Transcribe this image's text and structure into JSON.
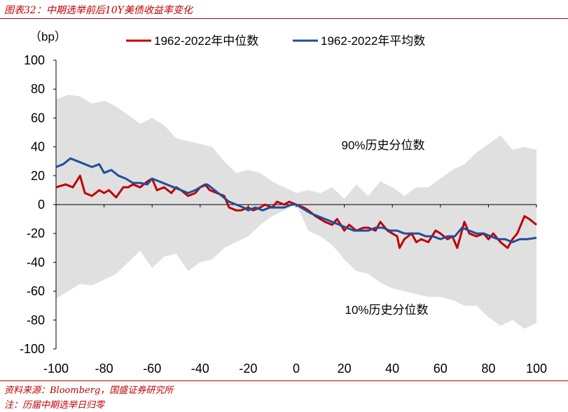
{
  "figure_title": "图表32：中期选举前后10Y美债收益率变化",
  "source_note": "资料来源：Bloomberg，国盛证券研究所",
  "footnote": "注：历届中期选举日归零",
  "chart_data": {
    "type": "line",
    "title": "",
    "ylabel": "（bp）",
    "xlabel": "",
    "xlim": [
      -100,
      100
    ],
    "ylim": [
      -100,
      100
    ],
    "xticks": [
      "-100",
      "-80",
      "-60",
      "-40",
      "-20",
      "0",
      "20",
      "40",
      "60",
      "80",
      "100"
    ],
    "yticks": [
      "100",
      "80",
      "60",
      "40",
      "20",
      "0",
      "-20",
      "-40",
      "-60",
      "-80",
      "-100"
    ],
    "legend_position": "top",
    "grid": false,
    "band_labels": {
      "upper": "90%历史分位数",
      "lower": "10%历史分位数"
    },
    "band": {
      "color": "#e0e0e0",
      "x": [
        -100,
        -95,
        -90,
        -85,
        -80,
        -75,
        -70,
        -65,
        -60,
        -55,
        -50,
        -45,
        -40,
        -35,
        -30,
        -25,
        -20,
        -15,
        -10,
        -5,
        0,
        5,
        10,
        15,
        20,
        25,
        30,
        35,
        40,
        45,
        50,
        55,
        60,
        65,
        70,
        75,
        80,
        85,
        90,
        95,
        100
      ],
      "upper": [
        73,
        76,
        75,
        70,
        72,
        68,
        62,
        56,
        60,
        55,
        46,
        44,
        42,
        40,
        30,
        22,
        24,
        22,
        16,
        12,
        8,
        10,
        8,
        12,
        4,
        14,
        6,
        16,
        12,
        6,
        12,
        12,
        18,
        24,
        28,
        36,
        42,
        48,
        38,
        40,
        38
      ],
      "lower": [
        -65,
        -60,
        -55,
        -56,
        -52,
        -48,
        -40,
        -32,
        -44,
        -36,
        -34,
        -46,
        -40,
        -38,
        -30,
        -26,
        -22,
        -14,
        -8,
        -4,
        0,
        -18,
        -22,
        -28,
        -38,
        -46,
        -48,
        -54,
        -58,
        -60,
        -62,
        -64,
        -64,
        -66,
        -70,
        -70,
        -78,
        -84,
        -80,
        -86,
        -82
      ]
    },
    "series": [
      {
        "name": "1962-2022年中位数",
        "color": "#c00000",
        "x": [
          -100,
          -96,
          -93,
          -90,
          -88,
          -85,
          -82,
          -80,
          -78,
          -75,
          -72,
          -70,
          -68,
          -65,
          -62,
          -60,
          -58,
          -55,
          -52,
          -50,
          -48,
          -45,
          -42,
          -40,
          -38,
          -36,
          -33,
          -30,
          -28,
          -25,
          -23,
          -20,
          -18,
          -15,
          -13,
          -10,
          -8,
          -5,
          -3,
          0,
          3,
          5,
          8,
          10,
          12,
          15,
          17,
          20,
          22,
          25,
          28,
          30,
          33,
          35,
          38,
          40,
          42,
          43,
          45,
          48,
          50,
          52,
          55,
          58,
          60,
          63,
          65,
          67,
          70,
          72,
          75,
          78,
          80,
          82,
          85,
          88,
          90,
          92,
          95,
          97,
          100
        ],
        "y": [
          12,
          14,
          12,
          20,
          8,
          6,
          10,
          8,
          10,
          5,
          12,
          12,
          14,
          12,
          16,
          18,
          10,
          12,
          8,
          12,
          10,
          6,
          8,
          12,
          14,
          10,
          8,
          6,
          -2,
          -4,
          -4,
          -2,
          -4,
          -2,
          0,
          -2,
          2,
          0,
          2,
          0,
          -2,
          -4,
          -8,
          -10,
          -12,
          -14,
          -10,
          -18,
          -14,
          -18,
          -16,
          -16,
          -18,
          -12,
          -18,
          -20,
          -22,
          -30,
          -24,
          -20,
          -26,
          -24,
          -26,
          -18,
          -20,
          -24,
          -22,
          -30,
          -12,
          -20,
          -22,
          -20,
          -24,
          -20,
          -26,
          -30,
          -24,
          -20,
          -8,
          -10,
          -14
        ]
      },
      {
        "name": "1962-2022年平均数",
        "color": "#1f4e9c",
        "x": [
          -100,
          -97,
          -94,
          -91,
          -88,
          -85,
          -82,
          -80,
          -77,
          -74,
          -71,
          -68,
          -65,
          -62,
          -60,
          -57,
          -54,
          -51,
          -48,
          -45,
          -42,
          -40,
          -37,
          -34,
          -31,
          -28,
          -25,
          -22,
          -20,
          -17,
          -14,
          -11,
          -8,
          -5,
          -2,
          0,
          3,
          6,
          9,
          12,
          15,
          18,
          21,
          24,
          27,
          30,
          33,
          36,
          39,
          42,
          45,
          48,
          51,
          54,
          57,
          60,
          63,
          66,
          69,
          72,
          75,
          78,
          81,
          84,
          87,
          90,
          93,
          96,
          100
        ],
        "y": [
          26,
          28,
          32,
          30,
          28,
          26,
          28,
          22,
          24,
          20,
          18,
          15,
          15,
          14,
          18,
          16,
          14,
          12,
          10,
          8,
          10,
          12,
          14,
          10,
          6,
          2,
          0,
          -2,
          -4,
          -2,
          -4,
          -2,
          -2,
          -2,
          0,
          0,
          -3,
          -6,
          -8,
          -10,
          -12,
          -14,
          -16,
          -18,
          -18,
          -18,
          -16,
          -16,
          -18,
          -18,
          -20,
          -20,
          -20,
          -22,
          -22,
          -24,
          -22,
          -22,
          -16,
          -18,
          -20,
          -20,
          -22,
          -24,
          -24,
          -26,
          -24,
          -24,
          -23
        ]
      }
    ]
  }
}
